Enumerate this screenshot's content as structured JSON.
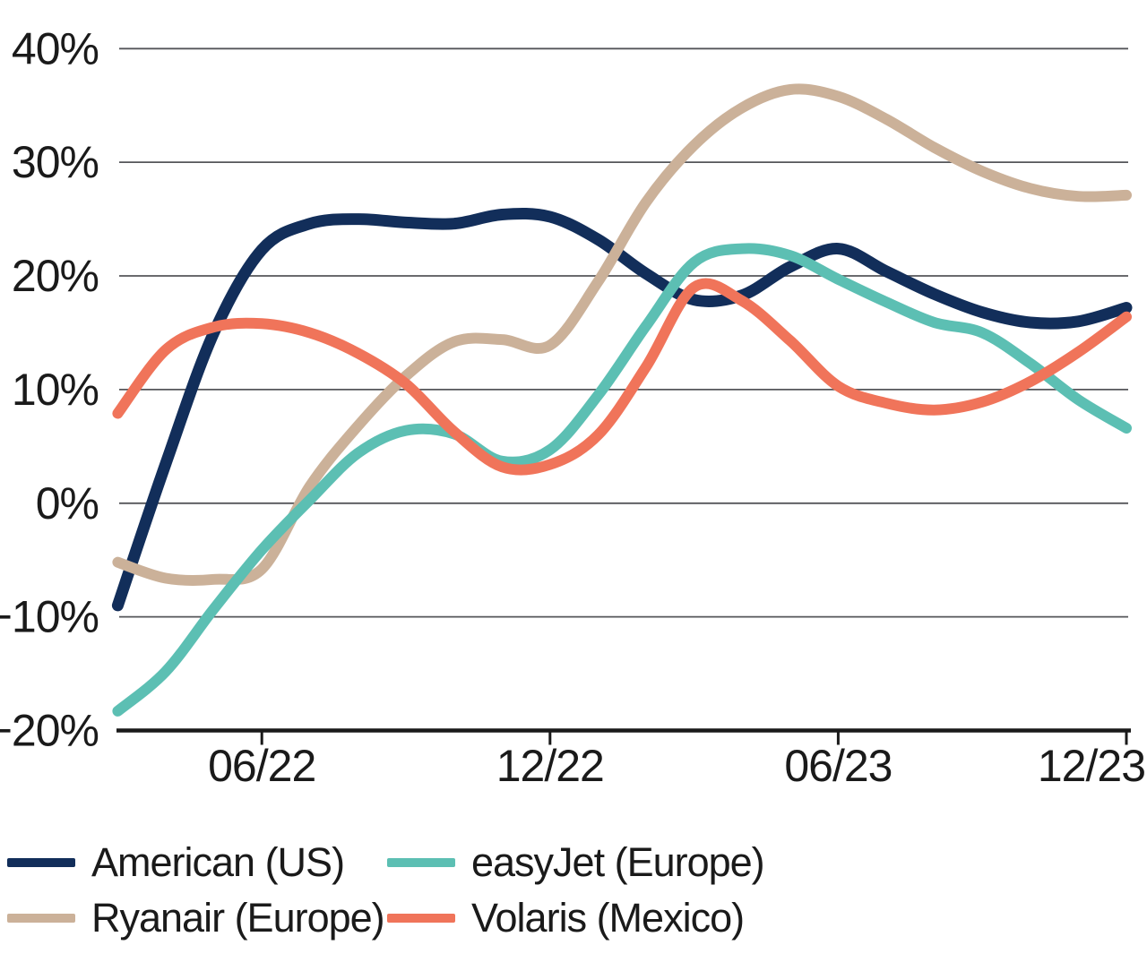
{
  "chart_data": {
    "type": "line",
    "title": "",
    "xlabel": "",
    "ylabel": "",
    "x_unit": "month",
    "x_range_note": "22 monthly points from 03/22 to 12/23",
    "x_tick_labels": [
      "06/22",
      "12/22",
      "06/23",
      "12/23"
    ],
    "x_tick_indices": [
      3,
      9,
      15,
      21
    ],
    "y_tick_values": [
      40,
      30,
      20,
      10,
      0,
      -10,
      -20
    ],
    "y_tick_labels": [
      "40%",
      "30%",
      "20%",
      "10%",
      "0%",
      "−10%",
      "−20%"
    ],
    "ylim": [
      -20,
      40
    ],
    "grid": "horizontal-gray-lines",
    "legend_position": "bottom-two-columns",
    "series": [
      {
        "name": "American (US)",
        "color": "#122E5A",
        "values": [
          -9.0,
          3.5,
          15.0,
          22.3,
          24.6,
          25.0,
          24.7,
          24.6,
          25.4,
          25.2,
          23.2,
          20.2,
          17.9,
          18.3,
          20.8,
          22.4,
          20.4,
          18.4,
          16.8,
          15.9,
          16.0,
          17.2
        ]
      },
      {
        "name": "Ryanair (Europe)",
        "color": "#CBB199",
        "values": [
          -5.2,
          -6.6,
          -6.7,
          -5.8,
          1.5,
          6.8,
          11.2,
          14.2,
          14.4,
          13.9,
          19.5,
          26.5,
          31.5,
          34.8,
          36.4,
          35.8,
          33.8,
          31.3,
          29.2,
          27.7,
          27.0,
          27.1
        ]
      },
      {
        "name": "easyJet (Europe)",
        "color": "#5CBFB3",
        "values": [
          -18.3,
          -14.8,
          -9.3,
          -4.1,
          0.3,
          4.4,
          6.4,
          6.1,
          3.7,
          4.7,
          9.5,
          15.6,
          21.2,
          22.4,
          21.8,
          19.7,
          17.7,
          15.9,
          15.0,
          12.3,
          9.1,
          6.6
        ]
      },
      {
        "name": "Volaris (Mexico)",
        "color": "#F0745A",
        "values": [
          7.9,
          13.5,
          15.5,
          15.8,
          15.0,
          13.2,
          10.5,
          6.3,
          3.2,
          3.4,
          6.0,
          12.0,
          19.0,
          17.8,
          14.3,
          10.3,
          8.8,
          8.2,
          8.9,
          10.7,
          13.3,
          16.4
        ]
      }
    ],
    "axis_color": "#1a1a1a",
    "gridline_color": "#55565A",
    "legend_row_major_series_order": [
      0,
      2,
      1,
      3
    ]
  }
}
